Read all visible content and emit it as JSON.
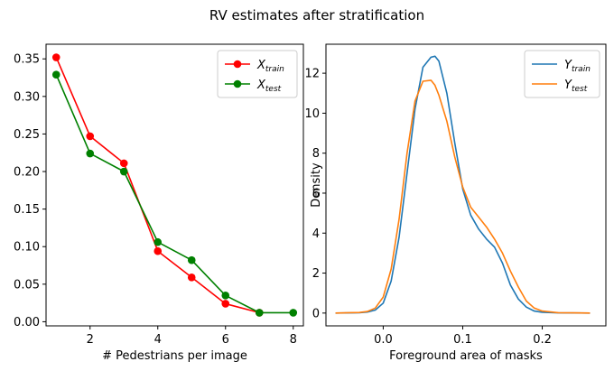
{
  "figure_title": "RV estimates after stratification",
  "chart_data": [
    {
      "type": "line",
      "xlabel": "# Pedestrians per image",
      "ylabel": "",
      "xlim": [
        0.7,
        8.3
      ],
      "ylim": [
        -0.0055,
        0.3695
      ],
      "x_ticks": [
        "2",
        "4",
        "6",
        "8"
      ],
      "x_tick_values": [
        2,
        4,
        6,
        8
      ],
      "y_ticks": [
        "0.00",
        "0.05",
        "0.10",
        "0.15",
        "0.20",
        "0.25",
        "0.30",
        "0.35"
      ],
      "y_tick_values": [
        0,
        0.05,
        0.1,
        0.15,
        0.2,
        0.25,
        0.3,
        0.35
      ],
      "grid": false,
      "legend": "top-right",
      "series": [
        {
          "name": "X",
          "sub": "train",
          "color": "#ff0000",
          "marker": "circle",
          "x": [
            1,
            2,
            3,
            4,
            5,
            6,
            7
          ],
          "y": [
            0.352,
            0.247,
            0.211,
            0.094,
            0.059,
            0.024,
            0.012
          ]
        },
        {
          "name": "X",
          "sub": "test",
          "color": "#008000",
          "marker": "circle",
          "x": [
            1,
            2,
            3,
            4,
            5,
            6,
            7,
            8
          ],
          "y": [
            0.329,
            0.224,
            0.2,
            0.106,
            0.082,
            0.035,
            0.012,
            0.012
          ]
        }
      ]
    },
    {
      "type": "line",
      "xlabel": "Foreground area of masks",
      "ylabel": "Density",
      "xlim": [
        -0.072,
        0.28
      ],
      "ylim": [
        -0.64,
        13.45
      ],
      "x_ticks": [
        "0.0",
        "0.1",
        "0.2"
      ],
      "x_tick_values": [
        0,
        0.1,
        0.2
      ],
      "y_ticks": [
        "0",
        "2",
        "4",
        "6",
        "8",
        "10",
        "12"
      ],
      "y_tick_values": [
        0,
        2,
        4,
        6,
        8,
        10,
        12
      ],
      "grid": false,
      "legend": "top-right",
      "series": [
        {
          "name": "Y",
          "sub": "train",
          "color": "#1f77b4",
          "x": [
            -0.06,
            -0.03,
            -0.02,
            -0.01,
            0,
            0.01,
            0.02,
            0.03,
            0.04,
            0.05,
            0.06,
            0.065,
            0.07,
            0.08,
            0.09,
            0.1,
            0.11,
            0.12,
            0.13,
            0.14,
            0.15,
            0.16,
            0.17,
            0.18,
            0.19,
            0.2,
            0.22,
            0.26
          ],
          "y": [
            0,
            0.02,
            0.05,
            0.15,
            0.5,
            1.6,
            3.8,
            7.0,
            10.2,
            12.3,
            12.8,
            12.85,
            12.6,
            11.0,
            8.5,
            6.2,
            4.9,
            4.2,
            3.7,
            3.3,
            2.5,
            1.4,
            0.7,
            0.3,
            0.1,
            0.04,
            0.01,
            0
          ]
        },
        {
          "name": "Y",
          "sub": "test",
          "color": "#ff7f0e",
          "x": [
            -0.06,
            -0.03,
            -0.02,
            -0.01,
            0,
            0.01,
            0.02,
            0.03,
            0.04,
            0.05,
            0.06,
            0.065,
            0.07,
            0.08,
            0.09,
            0.1,
            0.11,
            0.12,
            0.13,
            0.14,
            0.15,
            0.16,
            0.17,
            0.18,
            0.19,
            0.2,
            0.22,
            0.26
          ],
          "y": [
            0,
            0.03,
            0.08,
            0.25,
            0.8,
            2.2,
            4.7,
            8.0,
            10.6,
            11.6,
            11.65,
            11.4,
            10.9,
            9.6,
            7.8,
            6.3,
            5.3,
            4.8,
            4.3,
            3.7,
            3.0,
            2.1,
            1.3,
            0.6,
            0.25,
            0.1,
            0.02,
            0
          ]
        }
      ]
    }
  ]
}
